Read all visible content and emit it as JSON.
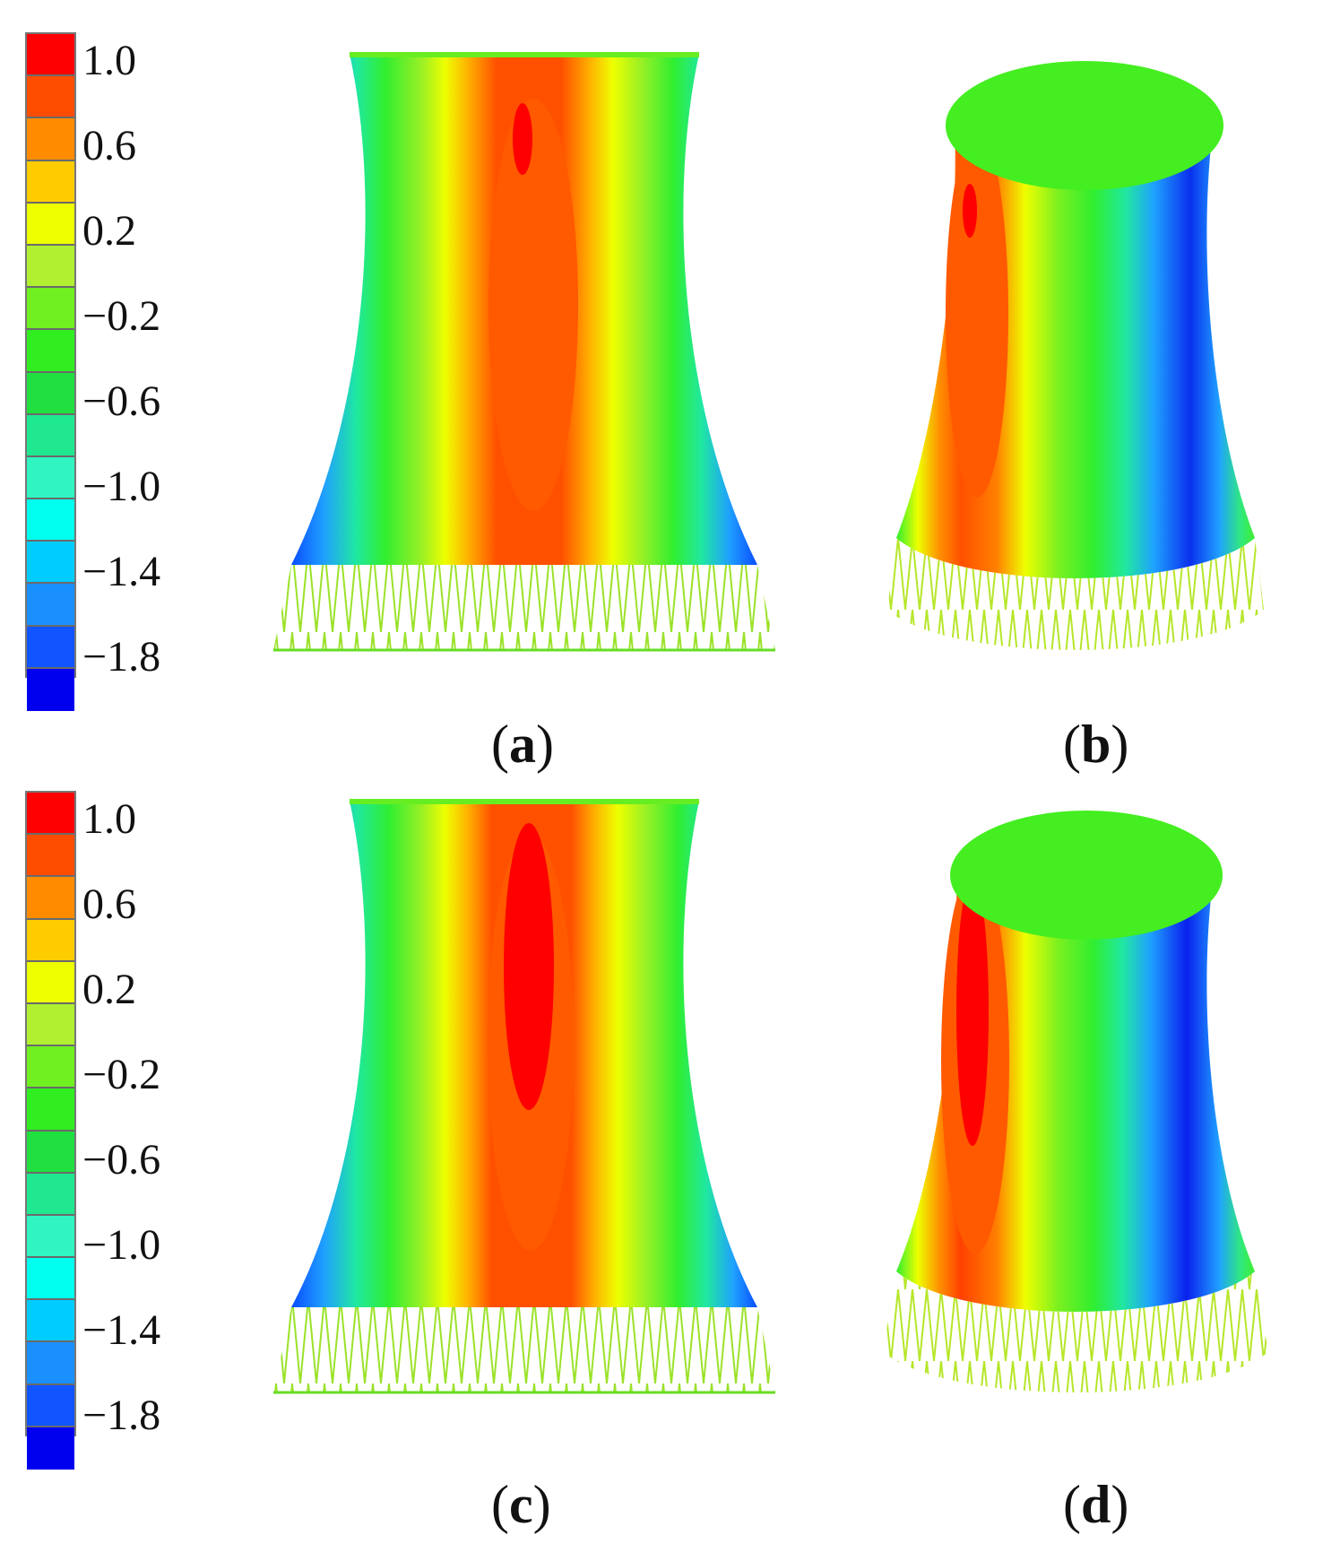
{
  "legend": {
    "tick_labels": [
      "1.0",
      "0.6",
      "0.2",
      "−0.2",
      "−0.6",
      "−1.0",
      "−1.4",
      "−1.8"
    ],
    "colors": [
      "#ff0000",
      "#ff4d00",
      "#ff8c00",
      "#ffcc00",
      "#eeff00",
      "#b0f030",
      "#70f020",
      "#30ee20",
      "#20e040",
      "#20e890",
      "#30f5c0",
      "#00ffee",
      "#00ccff",
      "#1a90ff",
      "#1055ff",
      "#0000ee"
    ]
  },
  "panels": [
    {
      "id": "a",
      "caption_letter": "a",
      "view": "front"
    },
    {
      "id": "b",
      "caption_letter": "b",
      "view": "perspective"
    },
    {
      "id": "c",
      "caption_letter": "c",
      "view": "front"
    },
    {
      "id": "d",
      "caption_letter": "d",
      "view": "perspective"
    }
  ]
}
